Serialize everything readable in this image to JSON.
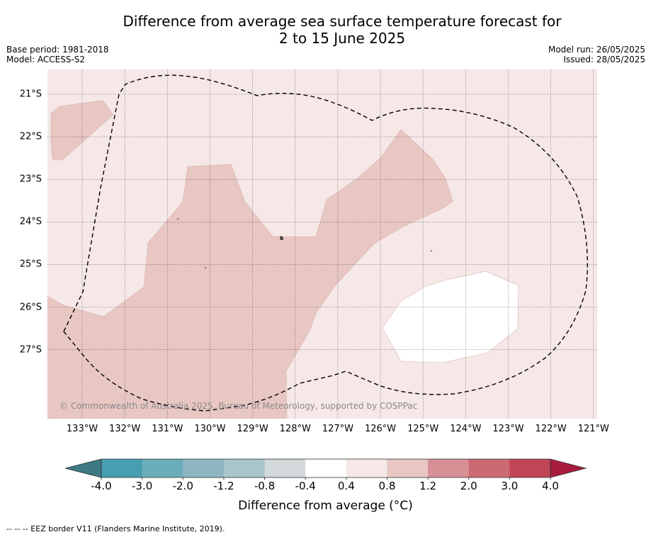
{
  "title": {
    "line1": "Difference from average sea surface temperature forecast for",
    "line2": "2 to 15 June 2025"
  },
  "meta": {
    "base_period": "Base period: 1981-2018",
    "model": "Model: ACCESS-S2",
    "model_run": "Model run: 26/05/2025",
    "issued": "Issued: 28/05/2025"
  },
  "map": {
    "lat_labels": [
      "21°S",
      "22°S",
      "23°S",
      "24°S",
      "25°S",
      "26°S",
      "27°S"
    ],
    "lon_labels": [
      "133°W",
      "132°W",
      "131°W",
      "130°W",
      "129°W",
      "128°W",
      "127°W",
      "126°W",
      "125°W",
      "124°W",
      "123°W",
      "122°W",
      "121°W"
    ],
    "copyright": "© Commonwealth of Australia 2025, Bureau of Meteorology, supported by COSPPac",
    "colors": {
      "anomaly_0_4_to_0_8": "#f5e8e7",
      "anomaly_0_8_to_1_2": "#e8c6c2",
      "anomaly_minus0_4_to_0_4": "#ffffff",
      "eez_border": "#000000"
    }
  },
  "colorbar": {
    "title": "Difference from average (°C)",
    "ticks": [
      "-4.0",
      "-3.0",
      "-2.0",
      "-1.2",
      "-0.8",
      "-0.4",
      "0.4",
      "0.8",
      "1.2",
      "2.0",
      "3.0",
      "4.0"
    ],
    "colors": [
      "#3d7a83",
      "#469eb0",
      "#6badb9",
      "#8db6c2",
      "#a8c6cb",
      "#d3d9da",
      "#ffffff",
      "#f5e8e7",
      "#e8c6c2",
      "#d98f96",
      "#cc6a73",
      "#bf4557",
      "#a81c3e"
    ]
  },
  "footnote": "--  --  -- EEZ border V11 (Flanders Marine Institute, 2019)."
}
